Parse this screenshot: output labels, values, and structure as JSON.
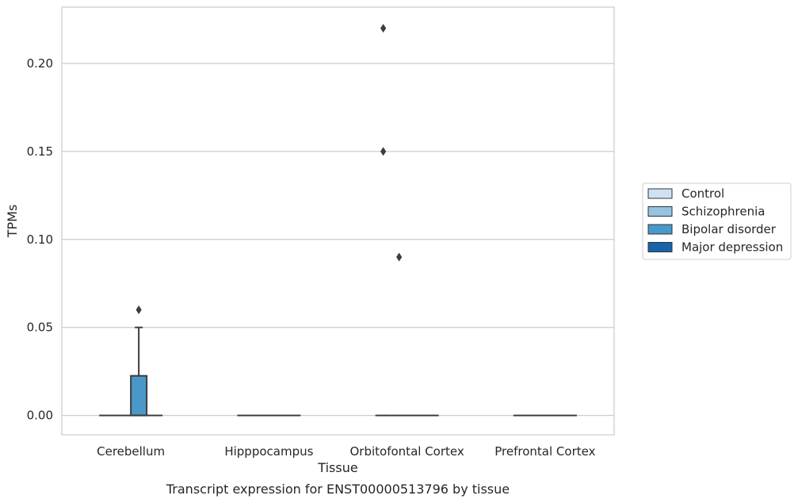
{
  "chart_data": {
    "type": "box",
    "categories": [
      "Cerebellum",
      "Hipppocampus",
      "Orbitofontal Cortex",
      "Prefrontal Cortex"
    ],
    "xlabel": "Tissue",
    "ylabel": "TPMs",
    "caption": "Transcript expression for ENST00000513796 by tissue",
    "ylim": [
      -0.011,
      0.232
    ],
    "yticks": [
      0.0,
      0.05,
      0.1,
      0.15,
      0.2
    ],
    "ytick_labels": [
      "0.00",
      "0.05",
      "0.10",
      "0.15",
      "0.20"
    ],
    "grid": "horizontal",
    "legend_position": "right",
    "series": [
      {
        "name": "Control",
        "color": "#d0e1f2",
        "boxes": [
          {
            "q1": 0,
            "median": 0,
            "q3": 0,
            "whisker_low": 0,
            "whisker_high": 0,
            "outliers": []
          },
          {
            "q1": 0,
            "median": 0,
            "q3": 0,
            "whisker_low": 0,
            "whisker_high": 0,
            "outliers": []
          },
          {
            "q1": 0,
            "median": 0,
            "q3": 0,
            "whisker_low": 0,
            "whisker_high": 0,
            "outliers": [
              0.22,
              0.15
            ]
          },
          {
            "q1": 0,
            "median": 0,
            "q3": 0,
            "whisker_low": 0,
            "whisker_high": 0,
            "outliers": []
          }
        ]
      },
      {
        "name": "Schizophrenia",
        "color": "#94c4df",
        "boxes": [
          {
            "q1": 0,
            "median": 0,
            "q3": 0,
            "whisker_low": 0,
            "whisker_high": 0,
            "outliers": []
          },
          {
            "q1": 0,
            "median": 0,
            "q3": 0,
            "whisker_low": 0,
            "whisker_high": 0,
            "outliers": []
          },
          {
            "q1": 0,
            "median": 0,
            "q3": 0,
            "whisker_low": 0,
            "whisker_high": 0,
            "outliers": [
              0.09
            ]
          },
          {
            "q1": 0,
            "median": 0,
            "q3": 0,
            "whisker_low": 0,
            "whisker_high": 0,
            "outliers": []
          }
        ]
      },
      {
        "name": "Bipolar disorder",
        "color": "#4a98c9",
        "boxes": [
          {
            "q1": 0,
            "median": 0,
            "q3": 0.0225,
            "whisker_low": 0,
            "whisker_high": 0.05,
            "outliers": [
              0.06
            ]
          },
          {
            "q1": 0,
            "median": 0,
            "q3": 0,
            "whisker_low": 0,
            "whisker_high": 0,
            "outliers": []
          },
          {
            "q1": 0,
            "median": 0,
            "q3": 0,
            "whisker_low": 0,
            "whisker_high": 0,
            "outliers": []
          },
          {
            "q1": 0,
            "median": 0,
            "q3": 0,
            "whisker_low": 0,
            "whisker_high": 0,
            "outliers": []
          }
        ]
      },
      {
        "name": "Major depression",
        "color": "#1764ab",
        "boxes": [
          {
            "q1": 0,
            "median": 0,
            "q3": 0,
            "whisker_low": 0,
            "whisker_high": 0,
            "outliers": []
          },
          {
            "q1": 0,
            "median": 0,
            "q3": 0,
            "whisker_low": 0,
            "whisker_high": 0,
            "outliers": []
          },
          {
            "q1": 0,
            "median": 0,
            "q3": 0,
            "whisker_low": 0,
            "whisker_high": 0,
            "outliers": []
          },
          {
            "q1": 0,
            "median": 0,
            "q3": 0,
            "whisker_low": 0,
            "whisker_high": 0,
            "outliers": []
          }
        ]
      }
    ]
  }
}
